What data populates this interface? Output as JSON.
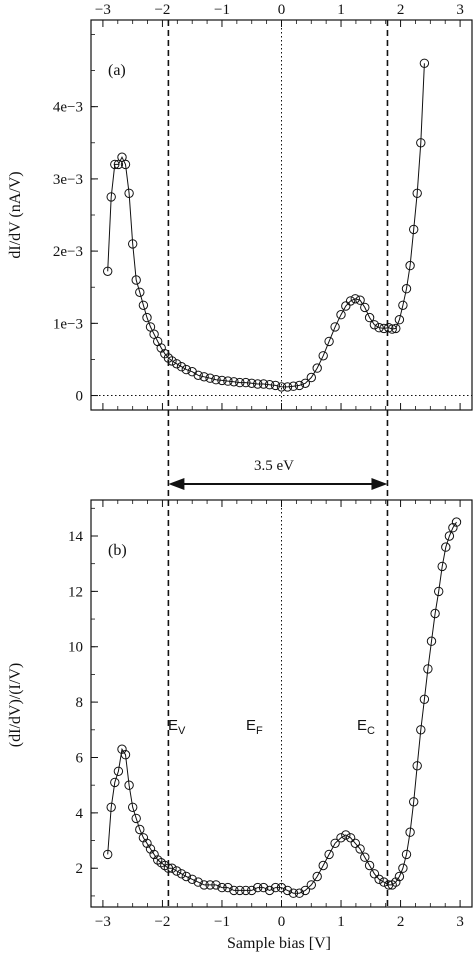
{
  "chart_data": [
    {
      "panel": "(a)",
      "type": "scatter",
      "xlim": [
        -3.2,
        3.2
      ],
      "ylim": [
        -0.0002,
        0.0052
      ],
      "xticks": [
        -3,
        -2,
        -1,
        0,
        1,
        2,
        3
      ],
      "xtick_labels": [
        "−3",
        "−2",
        "−1",
        "0",
        "1",
        "2",
        "3"
      ],
      "yticks": [
        0,
        0.001,
        0.002,
        0.003,
        0.004
      ],
      "ytick_labels": [
        "0",
        "1e−3",
        "2e−3",
        "3e−3",
        "4e−3"
      ],
      "ylabel": "dI/dV (nA/V)",
      "label": "(a)",
      "series": [
        {
          "style": "line+open-circle",
          "x": [
            -2.92,
            -2.86,
            -2.8,
            -2.74,
            -2.68,
            -2.62,
            -2.56,
            -2.5,
            -2.44,
            -2.38,
            -2.32,
            -2.26,
            -2.2,
            -2.14,
            -2.08,
            -2.02,
            -1.96,
            -1.9,
            -1.84,
            -1.76,
            -1.68,
            -1.6,
            -1.5,
            -1.4,
            -1.3,
            -1.2,
            -1.1,
            -1.0,
            -0.9,
            -0.8,
            -0.7,
            -0.6,
            -0.5,
            -0.4,
            -0.3,
            -0.2,
            -0.1,
            0.0,
            0.1,
            0.2,
            0.3,
            0.4,
            0.5,
            0.6,
            0.7,
            0.8,
            0.9,
            1.0,
            1.08,
            1.16,
            1.24,
            1.32,
            1.4,
            1.48,
            1.56,
            1.64,
            1.72,
            1.8,
            1.86,
            1.92,
            1.98,
            2.04,
            2.1,
            2.16,
            2.22,
            2.28,
            2.34,
            2.4
          ],
          "y": [
            0.00172,
            0.00275,
            0.0032,
            0.0032,
            0.0033,
            0.0032,
            0.0028,
            0.0021,
            0.0016,
            0.00143,
            0.00125,
            0.00108,
            0.00095,
            0.00085,
            0.00075,
            0.00066,
            0.00058,
            0.00052,
            0.00048,
            0.00044,
            0.0004,
            0.00036,
            0.00033,
            0.00028,
            0.00026,
            0.00024,
            0.00022,
            0.00021,
            0.0002,
            0.00019,
            0.00018,
            0.00018,
            0.00017,
            0.00016,
            0.00016,
            0.00015,
            0.00014,
            0.00012,
            0.00012,
            0.00013,
            0.00014,
            0.00017,
            0.00025,
            0.00038,
            0.00055,
            0.00075,
            0.00095,
            0.00112,
            0.00124,
            0.00131,
            0.00134,
            0.00132,
            0.00122,
            0.00108,
            0.00098,
            0.00094,
            0.00093,
            0.00094,
            0.00092,
            0.00093,
            0.00105,
            0.00125,
            0.00148,
            0.0018,
            0.0023,
            0.0028,
            0.0035,
            0.0046
          ]
        }
      ]
    },
    {
      "panel": "(b)",
      "type": "scatter",
      "xlim": [
        -3.2,
        3.2
      ],
      "ylim": [
        0.6,
        15.3
      ],
      "xticks": [
        -3,
        -2,
        -1,
        0,
        1,
        2,
        3
      ],
      "xtick_labels": [
        "−3",
        "−2",
        "−1",
        "0",
        "1",
        "2",
        "3"
      ],
      "yticks": [
        2,
        4,
        6,
        8,
        10,
        12,
        14
      ],
      "ytick_labels": [
        "2",
        "4",
        "6",
        "8",
        "10",
        "12",
        "14"
      ],
      "ylabel": "(dI/dV)/(I/V)",
      "xlabel": "Sample bias [V]",
      "label": "(b)",
      "annotations": {
        "ev": "E",
        "ev_sub": "V",
        "ef": "E",
        "ef_sub": "F",
        "ec": "E",
        "ec_sub": "C"
      },
      "series": [
        {
          "style": "line+open-circle",
          "x": [
            -2.92,
            -2.86,
            -2.8,
            -2.74,
            -2.68,
            -2.62,
            -2.56,
            -2.5,
            -2.44,
            -2.38,
            -2.32,
            -2.26,
            -2.2,
            -2.14,
            -2.08,
            -2.02,
            -1.96,
            -1.9,
            -1.84,
            -1.76,
            -1.68,
            -1.6,
            -1.5,
            -1.4,
            -1.3,
            -1.2,
            -1.1,
            -1.0,
            -0.9,
            -0.8,
            -0.7,
            -0.6,
            -0.5,
            -0.4,
            -0.3,
            -0.2,
            -0.1,
            0.0,
            0.1,
            0.2,
            0.3,
            0.4,
            0.5,
            0.6,
            0.7,
            0.8,
            0.9,
            1.0,
            1.08,
            1.16,
            1.24,
            1.32,
            1.4,
            1.48,
            1.56,
            1.64,
            1.72,
            1.8,
            1.86,
            1.92,
            1.98,
            2.04,
            2.1,
            2.16,
            2.22,
            2.28,
            2.34,
            2.4,
            2.46,
            2.52,
            2.58,
            2.64,
            2.7,
            2.76,
            2.82,
            2.88,
            2.94
          ],
          "y": [
            2.5,
            4.2,
            5.1,
            5.5,
            6.3,
            6.1,
            5.0,
            4.2,
            3.8,
            3.4,
            3.1,
            2.9,
            2.7,
            2.5,
            2.3,
            2.2,
            2.1,
            2.0,
            2.0,
            1.9,
            1.8,
            1.7,
            1.6,
            1.5,
            1.4,
            1.4,
            1.4,
            1.3,
            1.3,
            1.2,
            1.2,
            1.2,
            1.2,
            1.3,
            1.3,
            1.2,
            1.3,
            1.3,
            1.2,
            1.1,
            1.1,
            1.2,
            1.4,
            1.7,
            2.1,
            2.5,
            2.9,
            3.1,
            3.2,
            3.1,
            2.9,
            2.7,
            2.4,
            2.1,
            1.8,
            1.6,
            1.5,
            1.4,
            1.4,
            1.5,
            1.7,
            2.0,
            2.5,
            3.3,
            4.4,
            5.7,
            7.0,
            8.1,
            9.2,
            10.2,
            11.2,
            12.0,
            12.9,
            13.6,
            14.0,
            14.3,
            14.5
          ]
        }
      ]
    }
  ],
  "shared": {
    "ev_x": -1.9,
    "ec_x": 1.78,
    "gap_label": "3.5 eV"
  }
}
